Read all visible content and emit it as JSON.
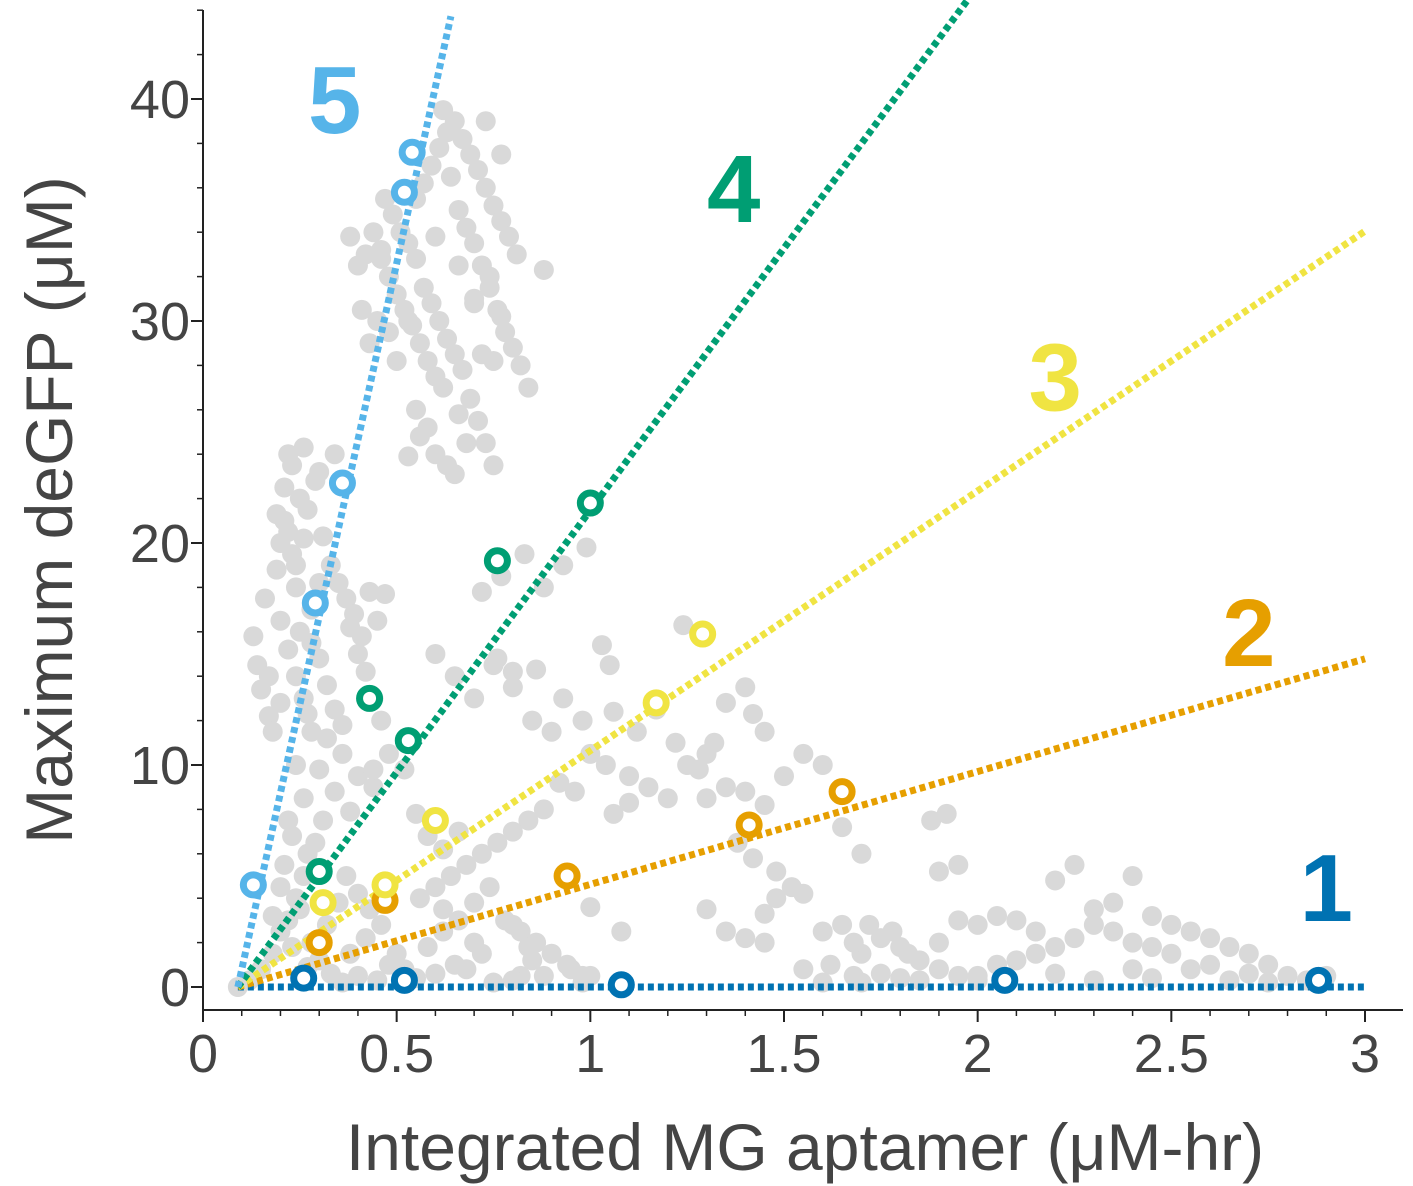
{
  "chart_data": {
    "type": "scatter",
    "xlabel": "Integrated MG aptamer (μM-hr)",
    "ylabel": "Maximum deGFP (μM)",
    "xlim": [
      0,
      3.1
    ],
    "ylim": [
      -1,
      44
    ],
    "xticks": [
      {
        "value": 0,
        "label": "0"
      },
      {
        "value": 0.5,
        "label": "0.5"
      },
      {
        "value": 1,
        "label": "1"
      },
      {
        "value": 1.5,
        "label": "1.5"
      },
      {
        "value": 2,
        "label": "2"
      },
      {
        "value": 2.5,
        "label": "2.5"
      },
      {
        "value": 3,
        "label": "3"
      }
    ],
    "yticks": [
      {
        "value": 0,
        "label": "0"
      },
      {
        "value": 10,
        "label": "10"
      },
      {
        "value": 20,
        "label": "20"
      },
      {
        "value": 30,
        "label": "30"
      },
      {
        "value": 40,
        "label": "40"
      }
    ],
    "background_color": "#d9d9d9",
    "background_points": [
      [
        0.09,
        0.0
      ],
      [
        0.12,
        0.3
      ],
      [
        0.15,
        0.8
      ],
      [
        0.18,
        1.5
      ],
      [
        0.2,
        2.5
      ],
      [
        0.22,
        3.0
      ],
      [
        0.24,
        4.0
      ],
      [
        0.26,
        5.0
      ],
      [
        0.27,
        6.0
      ],
      [
        0.29,
        6.5
      ],
      [
        0.31,
        7.5
      ],
      [
        0.21,
        5.5
      ],
      [
        0.23,
        6.8
      ],
      [
        0.25,
        3.5
      ],
      [
        0.28,
        2.0
      ],
      [
        0.3,
        1.2
      ],
      [
        0.33,
        0.6
      ],
      [
        0.36,
        0.2
      ],
      [
        0.4,
        0.5
      ],
      [
        0.45,
        0.3
      ],
      [
        0.18,
        3.2
      ],
      [
        0.2,
        4.5
      ],
      [
        0.23,
        1.8
      ],
      [
        0.27,
        0.9
      ],
      [
        0.32,
        2.8
      ],
      [
        0.35,
        3.8
      ],
      [
        0.38,
        1.5
      ],
      [
        0.42,
        2.2
      ],
      [
        0.48,
        1.0
      ],
      [
        0.52,
        0.8
      ],
      [
        0.13,
        15.8
      ],
      [
        0.14,
        14.5
      ],
      [
        0.15,
        13.4
      ],
      [
        0.17,
        12.2
      ],
      [
        0.18,
        11.5
      ],
      [
        0.16,
        17.5
      ],
      [
        0.19,
        18.8
      ],
      [
        0.2,
        20.0
      ],
      [
        0.21,
        21.0
      ],
      [
        0.22,
        20.5
      ],
      [
        0.23,
        19.5
      ],
      [
        0.24,
        18.0
      ],
      [
        0.2,
        16.5
      ],
      [
        0.22,
        15.2
      ],
      [
        0.24,
        14.0
      ],
      [
        0.26,
        13.0
      ],
      [
        0.27,
        12.3
      ],
      [
        0.25,
        16.0
      ],
      [
        0.28,
        15.5
      ],
      [
        0.3,
        14.8
      ],
      [
        0.32,
        13.6
      ],
      [
        0.34,
        12.5
      ],
      [
        0.36,
        11.8
      ],
      [
        0.38,
        16.2
      ],
      [
        0.4,
        15.0
      ],
      [
        0.42,
        14.2
      ],
      [
        0.44,
        13.0
      ],
      [
        0.46,
        12.0
      ],
      [
        0.35,
        18.2
      ],
      [
        0.37,
        17.5
      ],
      [
        0.39,
        16.8
      ],
      [
        0.41,
        15.8
      ],
      [
        0.43,
        17.8
      ],
      [
        0.45,
        16.5
      ],
      [
        0.47,
        17.7
      ],
      [
        0.19,
        21.3
      ],
      [
        0.21,
        22.5
      ],
      [
        0.23,
        23.5
      ],
      [
        0.25,
        22.0
      ],
      [
        0.27,
        21.5
      ],
      [
        0.29,
        22.8
      ],
      [
        0.31,
        20.3
      ],
      [
        0.33,
        19.0
      ],
      [
        0.3,
        18.2
      ],
      [
        0.28,
        17.0
      ],
      [
        0.22,
        24.0
      ],
      [
        0.26,
        24.3
      ],
      [
        0.3,
        23.2
      ],
      [
        0.34,
        24.0
      ],
      [
        0.24,
        19.0
      ],
      [
        0.26,
        20.2
      ],
      [
        0.28,
        11.5
      ],
      [
        0.32,
        11.2
      ],
      [
        0.36,
        10.5
      ],
      [
        0.4,
        9.5
      ],
      [
        0.44,
        9.0
      ],
      [
        0.3,
        9.8
      ],
      [
        0.34,
        8.8
      ],
      [
        0.38,
        7.9
      ],
      [
        0.24,
        10.0
      ],
      [
        0.26,
        8.5
      ],
      [
        0.22,
        7.5
      ],
      [
        0.2,
        12.8
      ],
      [
        0.17,
        14.0
      ],
      [
        0.38,
        33.8
      ],
      [
        0.4,
        32.5
      ],
      [
        0.42,
        33.0
      ],
      [
        0.44,
        34.0
      ],
      [
        0.46,
        33.2
      ],
      [
        0.48,
        32.0
      ],
      [
        0.5,
        31.2
      ],
      [
        0.52,
        30.5
      ],
      [
        0.54,
        29.8
      ],
      [
        0.56,
        29.0
      ],
      [
        0.58,
        28.2
      ],
      [
        0.6,
        27.5
      ],
      [
        0.62,
        27.0
      ],
      [
        0.47,
        35.5
      ],
      [
        0.49,
        34.8
      ],
      [
        0.51,
        34.0
      ],
      [
        0.53,
        33.5
      ],
      [
        0.55,
        32.8
      ],
      [
        0.57,
        31.5
      ],
      [
        0.59,
        30.8
      ],
      [
        0.61,
        30.0
      ],
      [
        0.63,
        29.2
      ],
      [
        0.65,
        28.5
      ],
      [
        0.67,
        27.8
      ],
      [
        0.69,
        26.5
      ],
      [
        0.71,
        25.5
      ],
      [
        0.73,
        24.5
      ],
      [
        0.75,
        23.5
      ],
      [
        0.55,
        35.5
      ],
      [
        0.57,
        36.2
      ],
      [
        0.59,
        37.0
      ],
      [
        0.61,
        37.8
      ],
      [
        0.63,
        38.5
      ],
      [
        0.65,
        39.0
      ],
      [
        0.67,
        38.2
      ],
      [
        0.69,
        37.5
      ],
      [
        0.71,
        36.8
      ],
      [
        0.73,
        36.0
      ],
      [
        0.75,
        35.2
      ],
      [
        0.77,
        34.5
      ],
      [
        0.79,
        33.8
      ],
      [
        0.81,
        33.0
      ],
      [
        0.62,
        39.5
      ],
      [
        0.64,
        36.5
      ],
      [
        0.66,
        35.0
      ],
      [
        0.68,
        34.2
      ],
      [
        0.7,
        33.5
      ],
      [
        0.72,
        32.5
      ],
      [
        0.74,
        31.5
      ],
      [
        0.76,
        30.5
      ],
      [
        0.78,
        29.5
      ],
      [
        0.8,
        28.8
      ],
      [
        0.82,
        28.0
      ],
      [
        0.84,
        27.0
      ],
      [
        0.88,
        32.3
      ],
      [
        0.73,
        39.0
      ],
      [
        0.77,
        37.5
      ],
      [
        0.7,
        30.8
      ],
      [
        0.72,
        28.5
      ],
      [
        0.75,
        28.2
      ],
      [
        0.66,
        32.5
      ],
      [
        0.6,
        33.8
      ],
      [
        0.45,
        30.0
      ],
      [
        0.43,
        29.0
      ],
      [
        0.41,
        30.5
      ],
      [
        0.55,
        26.0
      ],
      [
        0.58,
        25.2
      ],
      [
        0.6,
        24.0
      ],
      [
        0.63,
        23.5
      ],
      [
        0.66,
        25.8
      ],
      [
        0.68,
        24.5
      ],
      [
        0.56,
        24.8
      ],
      [
        0.5,
        28.2
      ],
      [
        0.48,
        29.5
      ],
      [
        0.53,
        30.0
      ],
      [
        0.65,
        23.1
      ],
      [
        0.53,
        23.9
      ],
      [
        0.46,
        32.8
      ],
      [
        0.7,
        31.0
      ],
      [
        0.77,
        30.2
      ],
      [
        0.74,
        32.0
      ],
      [
        0.6,
        15.0
      ],
      [
        0.65,
        14.0
      ],
      [
        0.7,
        13.0
      ],
      [
        0.75,
        14.5
      ],
      [
        0.8,
        13.5
      ],
      [
        0.85,
        12.0
      ],
      [
        0.9,
        11.5
      ],
      [
        0.72,
        17.8
      ],
      [
        0.77,
        18.5
      ],
      [
        0.83,
        19.5
      ],
      [
        0.88,
        18.0
      ],
      [
        0.93,
        19.0
      ],
      [
        0.99,
        19.8
      ],
      [
        0.76,
        14.8
      ],
      [
        0.8,
        14.2
      ],
      [
        0.86,
        14.3
      ],
      [
        0.93,
        13.0
      ],
      [
        0.98,
        12.0
      ],
      [
        1.03,
        15.4
      ],
      [
        1.05,
        14.5
      ],
      [
        1.06,
        12.4
      ],
      [
        1.12,
        11.5
      ],
      [
        1.17,
        12.5
      ],
      [
        1.22,
        11.0
      ],
      [
        1.24,
        16.3
      ],
      [
        1.3,
        10.5
      ],
      [
        1.35,
        12.8
      ],
      [
        1.4,
        13.5
      ],
      [
        1.42,
        12.3
      ],
      [
        1.45,
        11.5
      ],
      [
        1.32,
        11.0
      ],
      [
        1.0,
        10.5
      ],
      [
        1.04,
        10.0
      ],
      [
        1.1,
        9.5
      ],
      [
        1.15,
        9.0
      ],
      [
        1.2,
        8.5
      ],
      [
        1.25,
        10.0
      ],
      [
        1.28,
        9.8
      ],
      [
        1.1,
        8.3
      ],
      [
        1.06,
        7.8
      ],
      [
        0.96,
        8.8
      ],
      [
        0.92,
        9.2
      ],
      [
        0.88,
        8.0
      ],
      [
        0.84,
        7.5
      ],
      [
        0.8,
        7.0
      ],
      [
        0.76,
        6.5
      ],
      [
        0.72,
        6.0
      ],
      [
        0.68,
        5.5
      ],
      [
        0.64,
        5.0
      ],
      [
        0.6,
        4.5
      ],
      [
        0.56,
        4.0
      ],
      [
        0.62,
        3.5
      ],
      [
        0.66,
        3.0
      ],
      [
        0.7,
        3.8
      ],
      [
        0.74,
        4.5
      ],
      [
        0.78,
        3.0
      ],
      [
        0.82,
        2.5
      ],
      [
        0.86,
        2.0
      ],
      [
        0.9,
        1.5
      ],
      [
        0.94,
        1.0
      ],
      [
        0.98,
        0.5
      ],
      [
        1.0,
        3.6
      ],
      [
        1.08,
        2.5
      ],
      [
        0.55,
        7.8
      ],
      [
        0.58,
        6.8
      ],
      [
        0.62,
        6.2
      ],
      [
        0.66,
        7.0
      ],
      [
        0.52,
        9.8
      ],
      [
        0.48,
        10.5
      ],
      [
        0.44,
        9.8
      ],
      [
        0.8,
        2.8
      ],
      [
        0.84,
        1.8
      ],
      [
        0.88,
        0.5
      ],
      [
        1.3,
        8.5
      ],
      [
        1.35,
        9.0
      ],
      [
        1.4,
        8.8
      ],
      [
        1.45,
        8.2
      ],
      [
        1.5,
        9.5
      ],
      [
        1.55,
        10.5
      ],
      [
        1.6,
        10.0
      ],
      [
        1.65,
        7.2
      ],
      [
        1.38,
        6.5
      ],
      [
        1.42,
        5.8
      ],
      [
        1.48,
        5.2
      ],
      [
        1.52,
        4.5
      ],
      [
        1.55,
        4.2
      ],
      [
        1.48,
        4.0
      ],
      [
        1.45,
        3.3
      ],
      [
        1.35,
        2.5
      ],
      [
        1.4,
        2.2
      ],
      [
        1.45,
        2.0
      ],
      [
        1.3,
        3.5
      ],
      [
        1.7,
        6.0
      ],
      [
        1.6,
        2.5
      ],
      [
        1.65,
        2.8
      ],
      [
        1.7,
        1.5
      ],
      [
        1.75,
        2.2
      ],
      [
        1.8,
        1.8
      ],
      [
        1.85,
        1.2
      ],
      [
        1.9,
        0.8
      ],
      [
        1.95,
        0.5
      ],
      [
        2.0,
        0.3
      ],
      [
        1.62,
        1.0
      ],
      [
        1.68,
        2.0
      ],
      [
        1.72,
        2.8
      ],
      [
        1.78,
        2.5
      ],
      [
        1.82,
        1.5
      ],
      [
        1.88,
        7.5
      ],
      [
        1.92,
        7.8
      ],
      [
        1.95,
        5.5
      ],
      [
        1.9,
        5.2
      ],
      [
        1.95,
        3.0
      ],
      [
        2.0,
        2.8
      ],
      [
        2.05,
        3.2
      ],
      [
        2.1,
        3.0
      ],
      [
        2.15,
        2.5
      ],
      [
        2.2,
        4.8
      ],
      [
        2.25,
        5.5
      ],
      [
        2.3,
        3.5
      ],
      [
        2.35,
        3.8
      ],
      [
        2.4,
        5.0
      ],
      [
        2.45,
        3.2
      ],
      [
        2.5,
        2.8
      ],
      [
        2.55,
        2.5
      ],
      [
        2.6,
        2.2
      ],
      [
        2.65,
        1.8
      ],
      [
        2.7,
        1.5
      ],
      [
        2.75,
        1.0
      ],
      [
        2.8,
        0.5
      ],
      [
        2.5,
        1.5
      ],
      [
        2.45,
        1.8
      ],
      [
        2.4,
        2.0
      ],
      [
        2.35,
        2.5
      ],
      [
        2.3,
        2.8
      ],
      [
        2.25,
        2.2
      ],
      [
        2.2,
        1.8
      ],
      [
        2.15,
        1.5
      ],
      [
        2.1,
        1.2
      ],
      [
        2.05,
        1.0
      ],
      [
        2.0,
        0.5
      ],
      [
        2.55,
        0.8
      ],
      [
        2.6,
        1.0
      ],
      [
        2.65,
        0.3
      ],
      [
        2.7,
        0.6
      ],
      [
        2.75,
        0.2
      ],
      [
        2.85,
        0.3
      ],
      [
        2.9,
        0.5
      ],
      [
        2.4,
        0.8
      ],
      [
        2.45,
        0.4
      ],
      [
        2.3,
        0.3
      ],
      [
        2.2,
        0.6
      ],
      [
        1.55,
        0.8
      ],
      [
        1.6,
        0.2
      ],
      [
        1.68,
        0.5
      ],
      [
        1.75,
        0.6
      ],
      [
        1.85,
        0.3
      ],
      [
        1.9,
        2.0
      ],
      [
        1.8,
        0.4
      ],
      [
        1.7,
        0.2
      ],
      [
        0.95,
        0.8
      ],
      [
        0.98,
        0.2
      ],
      [
        1.0,
        0.5
      ],
      [
        0.85,
        1.2
      ],
      [
        0.82,
        0.5
      ],
      [
        0.8,
        0.3
      ],
      [
        0.75,
        0.2
      ],
      [
        0.72,
        1.5
      ],
      [
        0.7,
        2.0
      ],
      [
        0.68,
        0.8
      ],
      [
        0.65,
        1.0
      ],
      [
        0.62,
        2.5
      ],
      [
        0.6,
        0.6
      ],
      [
        0.58,
        1.8
      ],
      [
        0.55,
        0.4
      ],
      [
        0.5,
        1.5
      ],
      [
        0.46,
        2.8
      ],
      [
        0.43,
        3.5
      ],
      [
        0.4,
        4.2
      ],
      [
        0.37,
        5.0
      ]
    ],
    "series": [
      {
        "name": "1",
        "color": "#0072b2",
        "slope": 0.0,
        "x_end": 3.0,
        "label_pos": [
          2.9,
          4.5
        ],
        "points": [
          [
            0.26,
            0.4
          ],
          [
            0.52,
            0.3
          ],
          [
            1.08,
            0.1
          ],
          [
            2.07,
            0.3
          ],
          [
            2.88,
            0.3
          ]
        ]
      },
      {
        "name": "2",
        "color": "#e69f00",
        "slope": 5.08,
        "x_end": 3.0,
        "label_pos": [
          2.7,
          16.0
        ],
        "points": [
          [
            0.3,
            2.0
          ],
          [
            0.47,
            3.9
          ],
          [
            0.94,
            5.0
          ],
          [
            1.41,
            7.3
          ],
          [
            1.65,
            8.8
          ]
        ]
      },
      {
        "name": "3",
        "color": "#f0e442",
        "slope": 11.7,
        "x_end": 3.0,
        "label_pos": [
          2.2,
          27.5
        ],
        "points": [
          [
            0.31,
            3.8
          ],
          [
            0.47,
            4.6
          ],
          [
            0.6,
            7.5
          ],
          [
            1.17,
            12.8
          ],
          [
            1.29,
            15.9
          ]
        ]
      },
      {
        "name": "4",
        "color": "#009e73",
        "slope": 23.6,
        "x_end": 1.98,
        "label_pos": [
          1.37,
          36.0
        ],
        "points": [
          [
            0.3,
            5.2
          ],
          [
            0.43,
            13.0
          ],
          [
            0.53,
            11.1
          ],
          [
            0.76,
            19.2
          ],
          [
            1.0,
            21.8
          ]
        ]
      },
      {
        "name": "5",
        "color": "#56b4e9",
        "slope": 79.5,
        "x_end": 0.64,
        "label_pos": [
          0.34,
          40.0
        ],
        "points": [
          [
            0.13,
            4.6
          ],
          [
            0.29,
            17.3
          ],
          [
            0.36,
            22.7
          ],
          [
            0.52,
            35.8
          ],
          [
            0.54,
            37.6
          ]
        ]
      }
    ],
    "line_origin": [
      0.09,
      0.0
    ],
    "grid": false,
    "legend": "none"
  }
}
